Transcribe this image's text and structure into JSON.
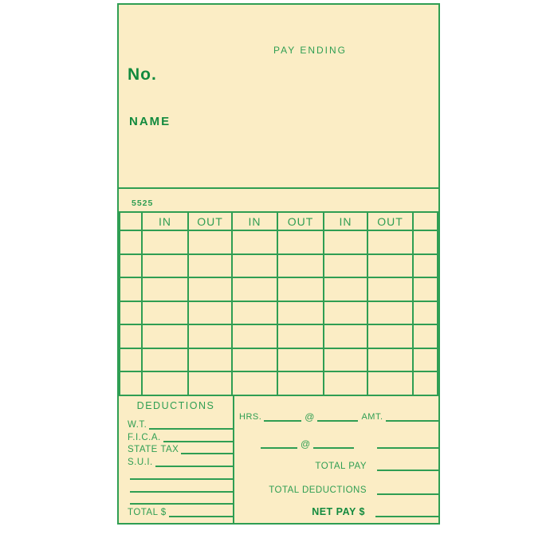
{
  "page": {
    "background": "#ffffff"
  },
  "card": {
    "colors": {
      "green": "#2f9e53",
      "green_dark": "#128a3e",
      "cream": "#fbedc5"
    },
    "header": {
      "pay_ending_label": "PAY ENDING",
      "number_label": "No.",
      "name_label": "NAME"
    },
    "form_number": "5525",
    "time_table": {
      "column_headers": [
        "",
        "IN",
        "OUT",
        "IN",
        "OUT",
        "IN",
        "OUT",
        ""
      ],
      "data_row_count": 7
    },
    "deductions": {
      "title": "DEDUCTIONS",
      "rows": [
        {
          "label": "W.T."
        },
        {
          "label": "F.I.C.A."
        },
        {
          "label": "STATE TAX"
        },
        {
          "label": "S.U.I."
        },
        {
          "label": ""
        },
        {
          "label": ""
        },
        {
          "label": ""
        },
        {
          "label": "TOTAL $"
        }
      ]
    },
    "pay_summary": {
      "hrs_label": "HRS.",
      "rate_symbol": "@",
      "amt_label": "AMT.",
      "total_pay_label": "TOTAL PAY",
      "total_deductions_label": "TOTAL DEDUCTIONS",
      "net_pay_label": "NET PAY $"
    }
  }
}
